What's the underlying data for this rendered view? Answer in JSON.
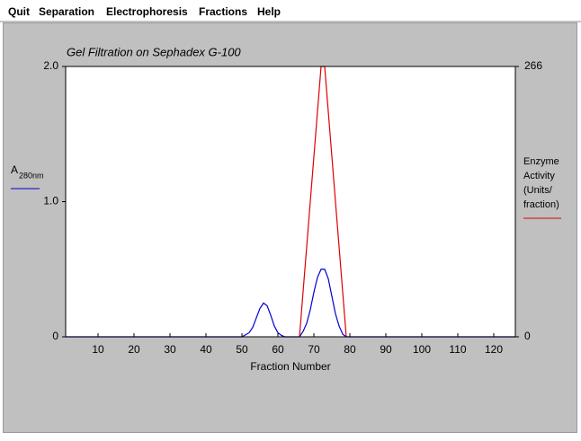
{
  "menu": [
    "Quit",
    "Separation",
    "Electrophoresis",
    "Fractions",
    "Help"
  ],
  "chart_data": {
    "type": "line",
    "title": "Gel Filtration on Sephadex G-100",
    "x_label": "Fraction Number",
    "y_label": [
      "A",
      "280nm"
    ],
    "y2_label": [
      "Enzyme",
      "Activity",
      "(Units/",
      "fraction)"
    ],
    "xlim": [
      1,
      126
    ],
    "xticks": [
      10,
      20,
      30,
      40,
      50,
      60,
      70,
      80,
      90,
      100,
      110,
      120
    ],
    "ylim": [
      0,
      2
    ],
    "yticks": [
      0,
      {
        "value": 1,
        "label": "1.0"
      },
      {
        "value": 2,
        "label": "2.0"
      }
    ],
    "y2lim": [
      0,
      266
    ],
    "y2ticks": [
      0,
      266
    ],
    "series": [
      {
        "color": "#0000cc",
        "x": [
          1,
          50,
          52,
          53,
          54,
          55,
          56,
          57,
          58,
          59,
          60,
          61,
          62,
          66,
          67,
          68,
          69,
          70,
          71,
          72,
          73,
          74,
          75,
          76,
          77,
          78,
          79,
          126
        ],
        "values": [
          0,
          0,
          0.03,
          0.07,
          0.14,
          0.21,
          0.25,
          0.23,
          0.16,
          0.08,
          0.03,
          0.01,
          0,
          0,
          0.04,
          0.1,
          0.2,
          0.33,
          0.44,
          0.5,
          0.5,
          0.43,
          0.3,
          0.17,
          0.08,
          0.02,
          0,
          0
        ]
      },
      {
        "color": "#dd0000",
        "axis": "y2",
        "x": [
          66,
          72,
          73,
          79
        ],
        "values": [
          0,
          266,
          266,
          0
        ]
      }
    ]
  }
}
